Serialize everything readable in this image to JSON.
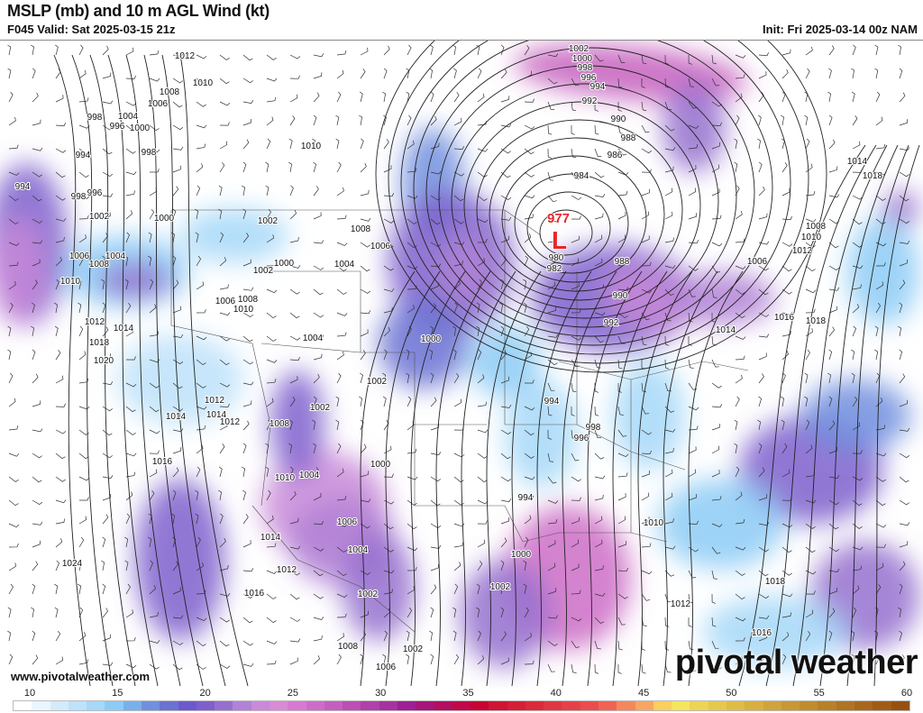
{
  "header": {
    "title": "MSLP (mb) and 10 m AGL Wind (kt)",
    "valid": "F045 Valid: Sat 2025-03-15 21z",
    "init": "Init: Fri 2025-03-14 00z NAM"
  },
  "map": {
    "low_center": {
      "symbol": "L",
      "pressure": "977"
    },
    "isobar_labels": [
      "1012",
      "1010",
      "1008",
      "1006",
      "998",
      "1004",
      "996",
      "1000",
      "994",
      "998",
      "1010",
      "994",
      "998",
      "996",
      "1002",
      "1000",
      "1002",
      "1008",
      "1006",
      "1004",
      "1000",
      "1002",
      "1006",
      "1008",
      "1010",
      "1004",
      "1008",
      "1006",
      "1010",
      "1012",
      "1014",
      "1018",
      "1020",
      "1004",
      "1000",
      "1002",
      "1012",
      "1014",
      "1012",
      "1014",
      "1008",
      "1002",
      "1016",
      "1010",
      "1004",
      "1000",
      "1006",
      "1004",
      "1014",
      "1012",
      "1016",
      "1024",
      "1002",
      "1002",
      "1000",
      "994",
      "994",
      "998",
      "996",
      "1010",
      "1012",
      "1018",
      "1016",
      "1008",
      "1002",
      "1006",
      "980",
      "982",
      "988",
      "990",
      "992",
      "984",
      "986",
      "988",
      "990",
      "992",
      "994",
      "996",
      "998",
      "1000",
      "1002",
      "1014",
      "1016",
      "1018",
      "1006",
      "1012",
      "1008",
      "1010",
      "1014",
      "1018"
    ],
    "low_color": "#e8262b"
  },
  "footer": {
    "website": "www.pivotalweather.com",
    "brand": "pivotal weather"
  },
  "colorbar": {
    "unit": "kt",
    "ticks": [
      "10",
      "15",
      "20",
      "25",
      "30",
      "35",
      "40",
      "45",
      "50",
      "55",
      "60"
    ],
    "colors": [
      "#ffffff",
      "#eaf5fd",
      "#d3ebfb",
      "#bde2fa",
      "#a6d8f8",
      "#8ccbf6",
      "#7ab0ea",
      "#718fde",
      "#6a72d2",
      "#6a5acd",
      "#7e5fcc",
      "#9570cf",
      "#b182d6",
      "#c98ad9",
      "#d98bd6",
      "#d57ad0",
      "#cd6cc7",
      "#c55fbe",
      "#bb4fb4",
      "#b040aa",
      "#a631a0",
      "#9f1f94",
      "#a5177c",
      "#b20f62",
      "#c0084a",
      "#c90333",
      "#d01434",
      "#d51f36",
      "#db2a3c",
      "#e03642",
      "#e54148",
      "#ea4d4e",
      "#ef6354",
      "#f5875c",
      "#f7a564",
      "#f9cf5e",
      "#f5e55c",
      "#eed454",
      "#e6c84c",
      "#dfbc46",
      "#d8b040",
      "#d0a43a",
      "#c89834",
      "#c08c2e",
      "#b88028",
      "#b07422",
      "#a8681c",
      "#a05c16",
      "#985010"
    ]
  }
}
